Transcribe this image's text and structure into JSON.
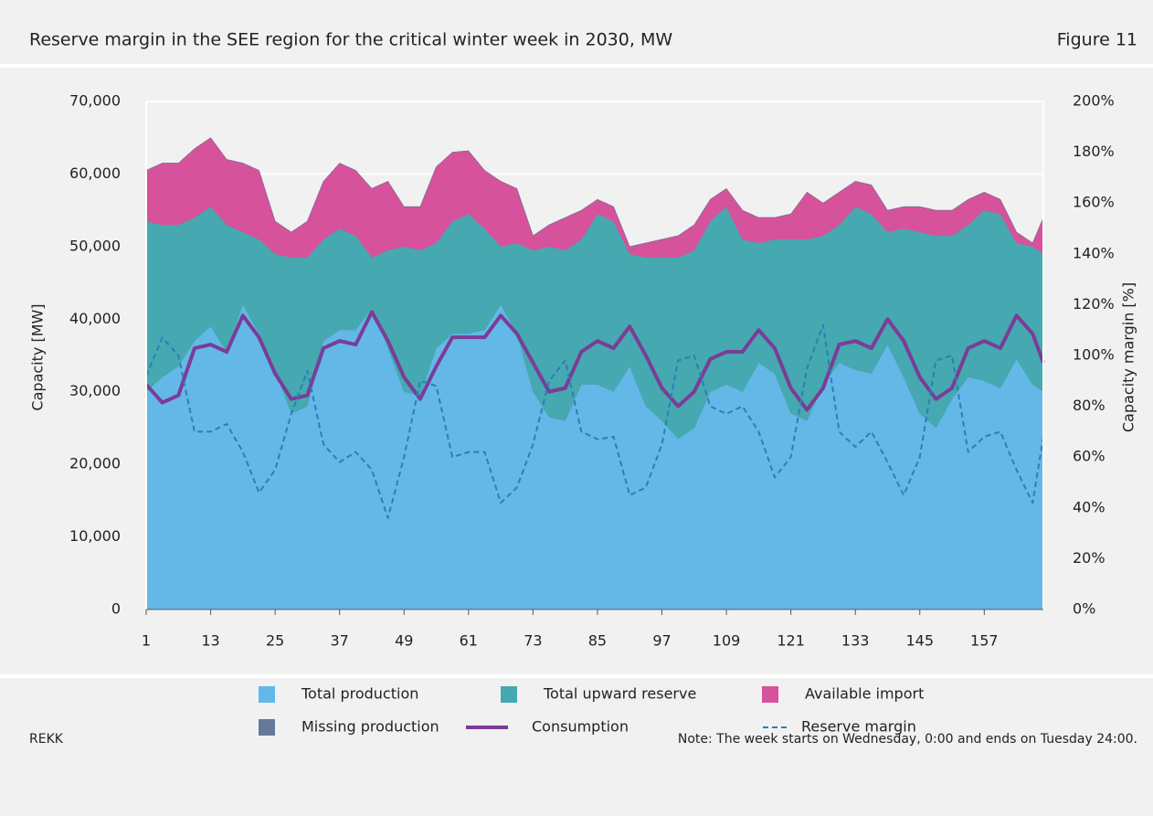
{
  "chart_data": {
    "type": "stacked-area-line",
    "title": "Reserve margin in the SEE region for the critical winter week in 2030, MW",
    "figure_label": "Figure 11",
    "source": "REKK",
    "note": "Note: The week starts on Wednesday, 0:00 and ends on Tuesday 24:00.",
    "y_label": "Capacity [MW]",
    "y2_label": "Capacity margin [%]",
    "x": [
      1,
      4,
      7,
      10,
      13,
      16,
      19,
      22,
      25,
      28,
      31,
      34,
      37,
      40,
      43,
      46,
      49,
      52,
      55,
      58,
      61,
      64,
      67,
      70,
      73,
      76,
      79,
      82,
      85,
      88,
      91,
      94,
      97,
      100,
      103,
      106,
      109,
      112,
      115,
      118,
      121,
      124,
      127,
      130,
      133,
      136,
      139,
      142,
      145,
      148,
      151,
      154,
      157,
      160,
      163,
      166,
      168
    ],
    "xlim": [
      1,
      168
    ],
    "xticks": [
      1,
      13,
      25,
      37,
      49,
      61,
      73,
      85,
      97,
      109,
      121,
      133,
      145,
      157
    ],
    "ylim": [
      0,
      70000
    ],
    "yticks": [
      {
        "value": 0,
        "label": "0"
      },
      {
        "value": 10000,
        "label": "10,000"
      },
      {
        "value": 20000,
        "label": "20,000"
      },
      {
        "value": 30000,
        "label": "30,000"
      },
      {
        "value": 40000,
        "label": "40,000"
      },
      {
        "value": 50000,
        "label": "50,000"
      },
      {
        "value": 60000,
        "label": "60,000"
      },
      {
        "value": 70000,
        "label": "70,000"
      }
    ],
    "y2lim": [
      0,
      200
    ],
    "y2ticks": [
      {
        "value": 0,
        "label": "0%"
      },
      {
        "value": 20,
        "label": "20%"
      },
      {
        "value": 40,
        "label": "40%"
      },
      {
        "value": 60,
        "label": "60%"
      },
      {
        "value": 80,
        "label": "80%"
      },
      {
        "value": 100,
        "label": "100%"
      },
      {
        "value": 120,
        "label": "120%"
      },
      {
        "value": 140,
        "label": "140%"
      },
      {
        "value": 160,
        "label": "160%"
      },
      {
        "value": 180,
        "label": "180%"
      },
      {
        "value": 200,
        "label": "200%"
      }
    ],
    "grid": true,
    "series": [
      {
        "name": "Total production",
        "kind": "area",
        "color": "#63b8e8",
        "values": [
          30000,
          32000,
          33500,
          37000,
          39000,
          35500,
          42000,
          38000,
          33000,
          27000,
          28000,
          37000,
          38500,
          38500,
          41500,
          36000,
          30000,
          29500,
          36000,
          38000,
          38000,
          38500,
          42000,
          38000,
          30000,
          26500,
          26000,
          31000,
          31000,
          30000,
          33500,
          28000,
          26000,
          23500,
          25000,
          30000,
          31000,
          30000,
          34000,
          32500,
          27000,
          26000,
          31000,
          34000,
          33000,
          32500,
          36500,
          32000,
          27000,
          25000,
          29000,
          32000,
          31500,
          30500,
          34500,
          31000,
          30000
        ]
      },
      {
        "name": "Total upward reserve",
        "kind": "area",
        "color": "#46a8b0",
        "values": [
          23500,
          21000,
          19500,
          17000,
          16500,
          17500,
          10000,
          13000,
          16000,
          21500,
          20500,
          14000,
          14000,
          13000,
          7000,
          13500,
          20000,
          20000,
          14500,
          15500,
          16500,
          14000,
          8000,
          12500,
          19500,
          23500,
          23500,
          20000,
          23500,
          23500,
          15500,
          20500,
          22500,
          25000,
          24500,
          23500,
          24500,
          21000,
          16500,
          18500,
          24000,
          25000,
          20500,
          19000,
          22500,
          22000,
          15500,
          20500,
          25000,
          26500,
          22500,
          21000,
          23500,
          24000,
          16000,
          19000,
          19000
        ]
      },
      {
        "name": "Available import",
        "kind": "area",
        "color": "#d6529a",
        "values": [
          7000,
          8500,
          8500,
          9500,
          9500,
          9000,
          9500,
          9500,
          4500,
          3500,
          5000,
          8000,
          9000,
          9000,
          9500,
          9500,
          5500,
          6000,
          10500,
          9500,
          8700,
          8000,
          9000,
          7500,
          2000,
          3000,
          4500,
          4000,
          2000,
          2000,
          1000,
          2000,
          2500,
          3000,
          3500,
          3000,
          2500,
          4000,
          3500,
          3000,
          3500,
          6500,
          4500,
          4500,
          3500,
          4000,
          3000,
          3000,
          3500,
          3500,
          3500,
          3500,
          2500,
          2000,
          1500,
          500,
          5000
        ]
      },
      {
        "name": "Missing production",
        "kind": "area",
        "color": "#66789a",
        "values": [
          0,
          0,
          0,
          0,
          0,
          0,
          0,
          0,
          0,
          0,
          0,
          0,
          0,
          0,
          0,
          0,
          0,
          0,
          0,
          0,
          0,
          0,
          0,
          0,
          0,
          0,
          0,
          0,
          0,
          0,
          0,
          0,
          0,
          0,
          0,
          0,
          0,
          0,
          0,
          0,
          0,
          0,
          0,
          0,
          0,
          0,
          0,
          0,
          0,
          0,
          0,
          0,
          0,
          0,
          0,
          0,
          0
        ]
      },
      {
        "name": "Consumption",
        "kind": "line",
        "color": "#7b3c97",
        "values": [
          31000,
          28500,
          29500,
          36000,
          36500,
          35500,
          40500,
          37500,
          32500,
          29000,
          29500,
          36000,
          37000,
          36500,
          41000,
          37000,
          32000,
          29000,
          33500,
          37500,
          37500,
          37500,
          40500,
          38000,
          34000,
          30000,
          30500,
          35500,
          37000,
          36000,
          39000,
          35000,
          30500,
          28000,
          30000,
          34500,
          35500,
          35500,
          38500,
          36000,
          30500,
          27500,
          30500,
          36500,
          37000,
          36000,
          40000,
          37000,
          32000,
          29000,
          30500,
          36000,
          37000,
          36000,
          40500,
          38000,
          34000
        ]
      },
      {
        "name": "Reserve margin",
        "kind": "dashed",
        "axis": "y2",
        "color": "#2a7fb5",
        "values": [
          92,
          107,
          100,
          70,
          70,
          73,
          62,
          46,
          55,
          77,
          94,
          65,
          58,
          62,
          55,
          36,
          60,
          90,
          88,
          60,
          62,
          62,
          42,
          48,
          65,
          90,
          98,
          70,
          67,
          68,
          45,
          48,
          65,
          98,
          100,
          80,
          77,
          80,
          70,
          52,
          60,
          95,
          112,
          70,
          64,
          70,
          58,
          45,
          60,
          98,
          100,
          62,
          68,
          70,
          55,
          42,
          68
        ]
      }
    ]
  }
}
